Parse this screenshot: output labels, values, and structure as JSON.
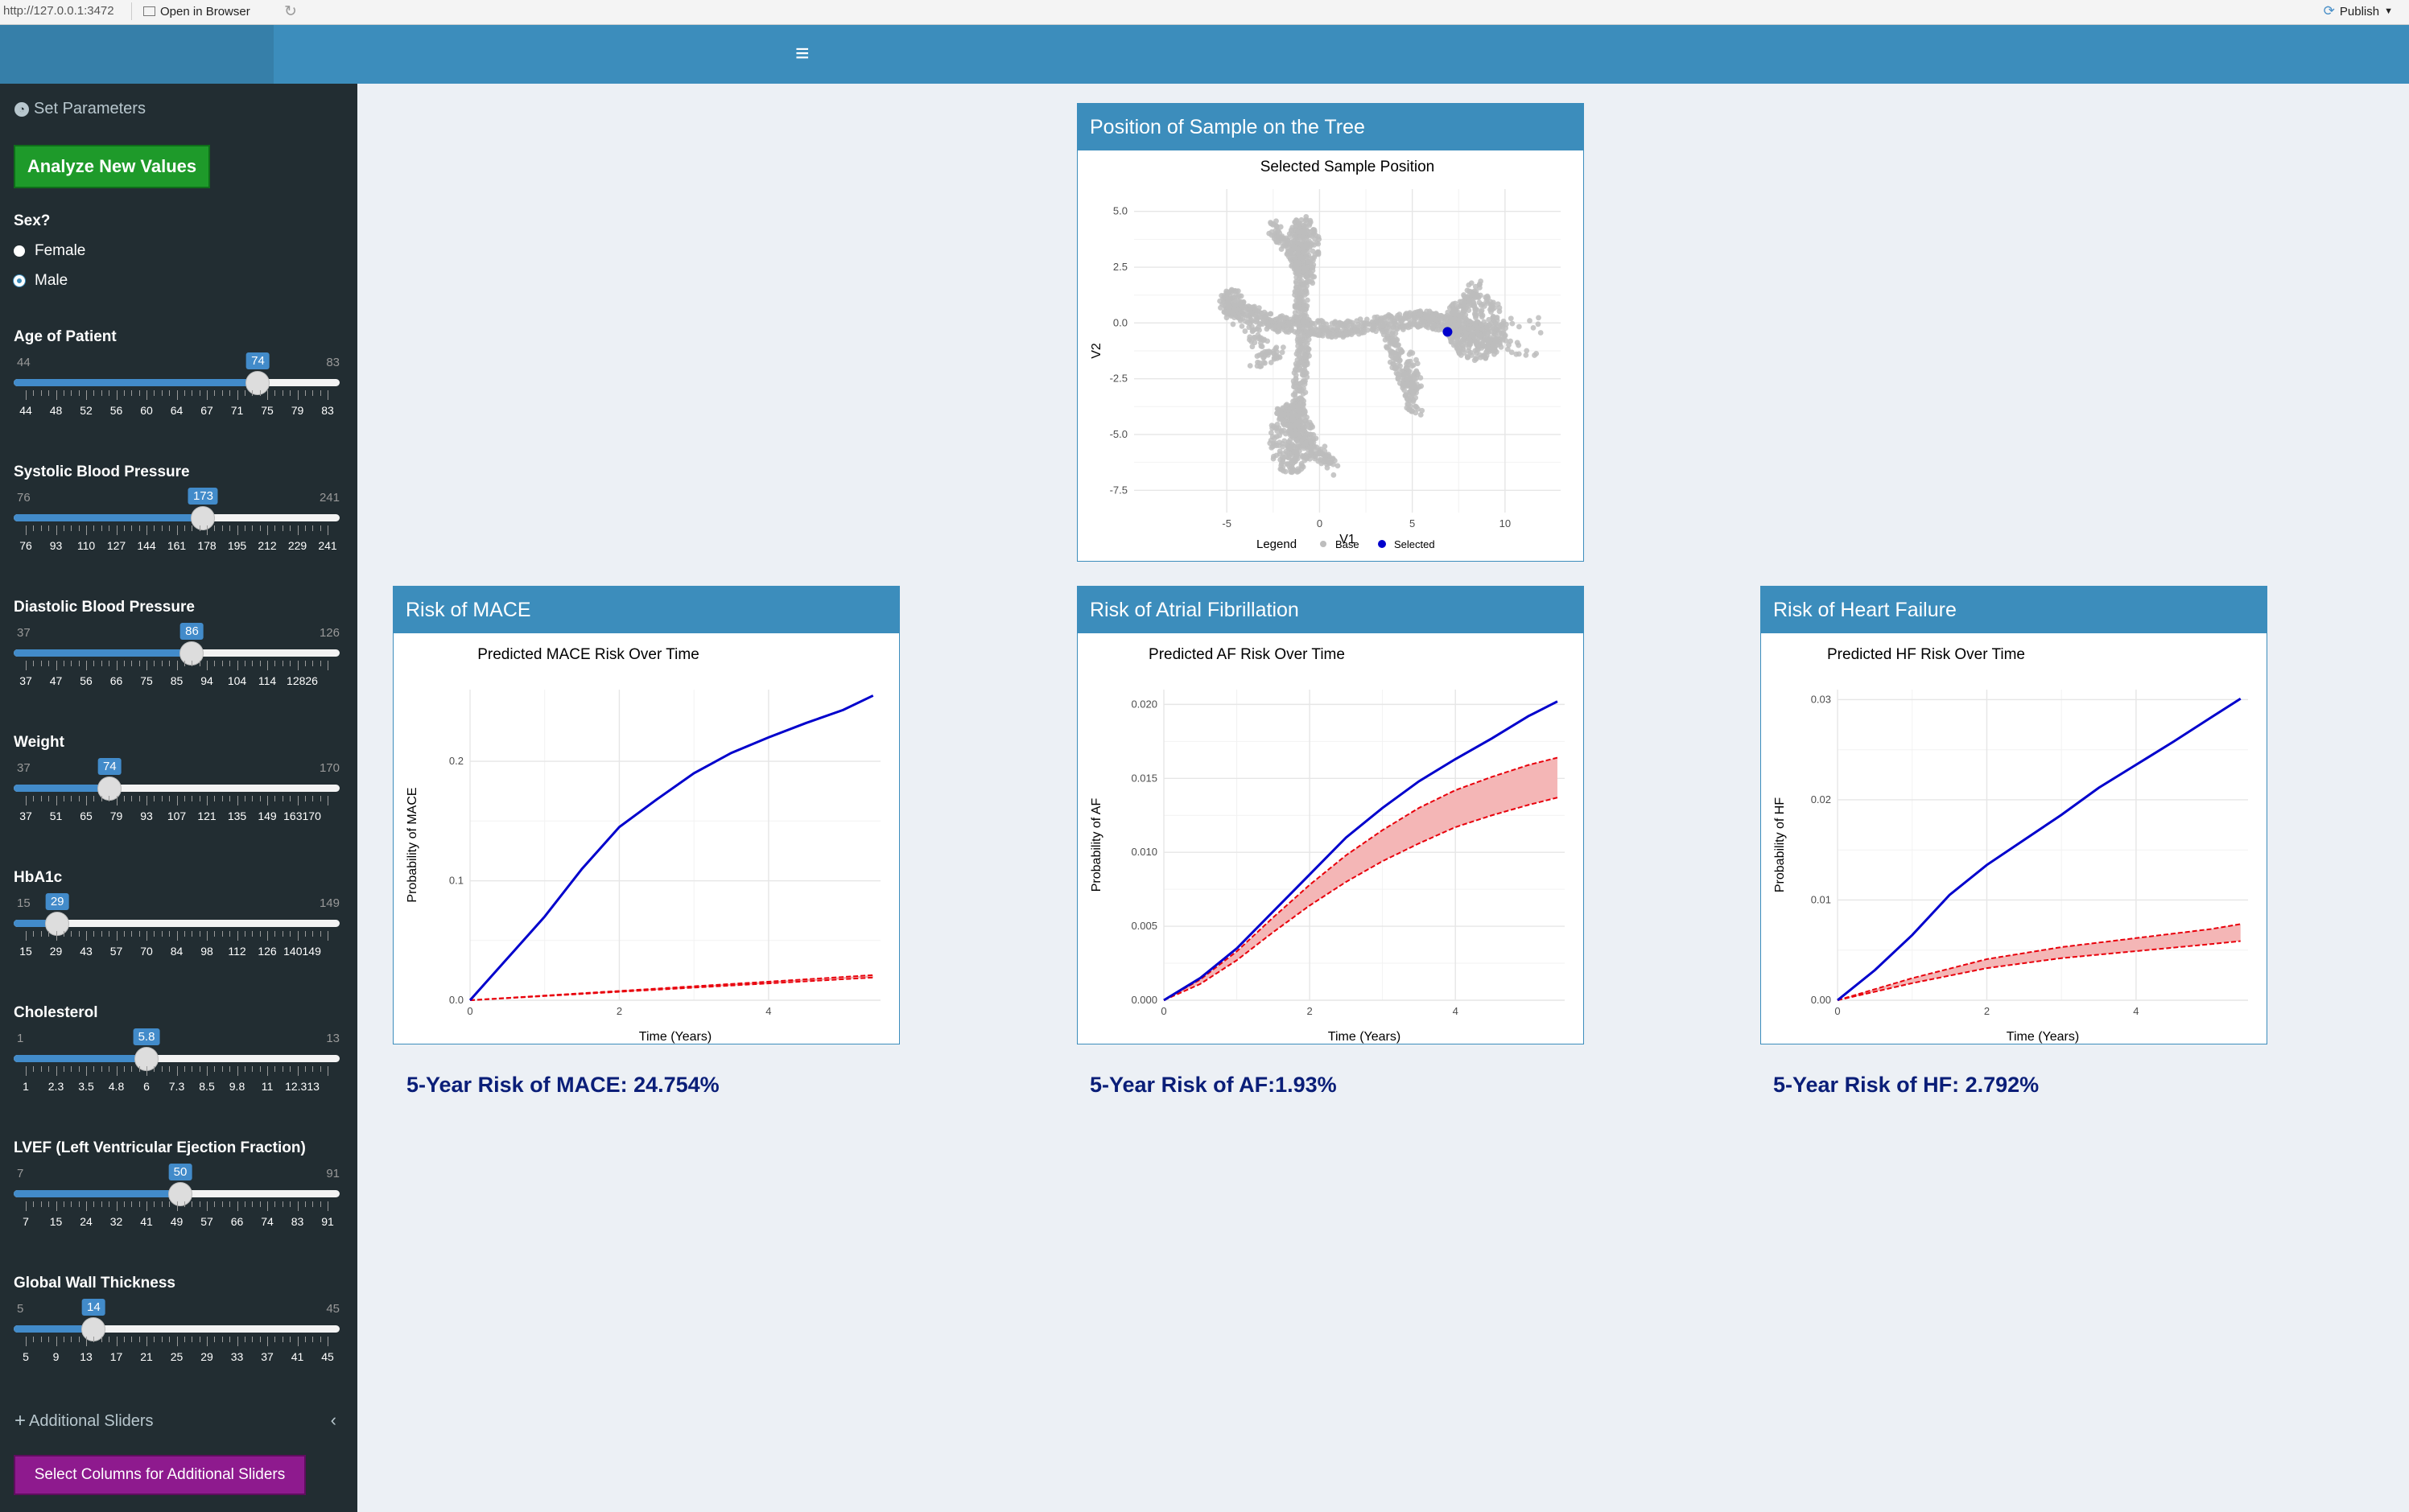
{
  "browser": {
    "url": "http://127.0.0.1:3472",
    "open_label": "Open in Browser",
    "publish_label": "Publish"
  },
  "sidebar": {
    "title": "Set Parameters",
    "analyze_button": "Analyze New Values",
    "sex_label": "Sex?",
    "sex_options": [
      "Female",
      "Male"
    ],
    "sex_selected": "Male",
    "sliders": [
      {
        "label": "Age of Patient",
        "min": "44",
        "max": "83",
        "value": "74",
        "ticks": [
          "44",
          "48",
          "52",
          "56",
          "60",
          "64",
          "67",
          "71",
          "75",
          "79",
          "83"
        ]
      },
      {
        "label": "Systolic Blood Pressure",
        "min": "76",
        "max": "241",
        "value": "173",
        "ticks": [
          "76",
          "93",
          "110",
          "127",
          "144",
          "161",
          "178",
          "195",
          "212",
          "229",
          "241"
        ]
      },
      {
        "label": "Diastolic Blood Pressure",
        "min": "37",
        "max": "126",
        "value": "86",
        "ticks": [
          "37",
          "47",
          "56",
          "66",
          "75",
          "85",
          "94",
          "104",
          "114",
          "12826"
        ]
      },
      {
        "label": "Weight",
        "min": "37",
        "max": "170",
        "value": "74",
        "ticks": [
          "37",
          "51",
          "65",
          "79",
          "93",
          "107",
          "121",
          "135",
          "149",
          "163170"
        ]
      },
      {
        "label": "HbA1c",
        "min": "15",
        "max": "149",
        "value": "29",
        "ticks": [
          "15",
          "29",
          "43",
          "57",
          "70",
          "84",
          "98",
          "112",
          "126",
          "140149"
        ]
      },
      {
        "label": "Cholesterol",
        "min": "1",
        "max": "13",
        "value": "5.8",
        "ticks": [
          "1",
          "2.3",
          "3.5",
          "4.8",
          "6",
          "7.3",
          "8.5",
          "9.8",
          "11",
          "12.313"
        ]
      },
      {
        "label": "LVEF (Left Ventricular Ejection Fraction)",
        "min": "7",
        "max": "91",
        "value": "50",
        "ticks": [
          "7",
          "15",
          "24",
          "32",
          "41",
          "49",
          "57",
          "66",
          "74",
          "83",
          "91"
        ]
      },
      {
        "label": "Global Wall Thickness",
        "min": "5",
        "max": "45",
        "value": "14",
        "ticks": [
          "5",
          "9",
          "13",
          "17",
          "21",
          "25",
          "29",
          "33",
          "37",
          "41",
          "45"
        ]
      }
    ],
    "additional_sliders": "Additional Sliders",
    "select_columns_button": "Select Columns for Additional Sliders"
  },
  "tree_box": {
    "title": "Position of Sample on the Tree"
  },
  "mace_box": {
    "title": "Risk of MACE",
    "result": "5-Year Risk of MACE: 24.754%"
  },
  "af_box": {
    "title": "Risk of Atrial Fibrillation",
    "result": "5-Year Risk of AF:1.93%"
  },
  "hf_box": {
    "title": "Risk of Heart Failure",
    "result": "5-Year Risk of HF: 2.792%"
  },
  "colors": {
    "header": "#3c8dbc",
    "sidebar": "#222d32",
    "selected": "#0000cc",
    "base": "#bdbdbd",
    "ribbon": "#f4b6b6",
    "ribbon_line": "#e8000b",
    "curve": "#0000cc"
  },
  "chart_data": [
    {
      "type": "scatter",
      "title": "Selected Sample Position",
      "xlabel": "V1",
      "ylabel": "V2",
      "xlim": [
        -10,
        13
      ],
      "ylim": [
        -8.5,
        6
      ],
      "xticks": [
        "-5",
        "0",
        "5",
        "10"
      ],
      "yticks": [
        "5.0",
        "2.5",
        "0.0",
        "-2.5",
        "-5.0",
        "-7.5"
      ],
      "legend_title": "Legend",
      "series": [
        {
          "name": "Base"
        },
        {
          "name": "Selected",
          "points": [
            [
              6.9,
              -0.4
            ]
          ]
        }
      ]
    },
    {
      "type": "line",
      "title": "Predicted MACE Risk Over Time",
      "xlabel": "Time (Years)",
      "ylabel": "Probability of MACE",
      "xlim": [
        0,
        5.5
      ],
      "ylim": [
        0,
        0.26
      ],
      "xticks": [
        "0",
        "2",
        "4"
      ],
      "yticks": [
        "0.0",
        "0.1",
        "0.2"
      ],
      "curve": {
        "x": [
          0,
          0.5,
          1,
          1.5,
          2,
          2.5,
          3,
          3.5,
          4,
          4.5,
          5,
          5.4
        ],
        "y": [
          0,
          0.035,
          0.07,
          0.11,
          0.145,
          0.168,
          0.19,
          0.207,
          0.22,
          0.232,
          0.243,
          0.255
        ]
      },
      "band": {
        "x": [
          0,
          5.4
        ],
        "lower": [
          0,
          0.019
        ],
        "upper": [
          0,
          0.021
        ]
      }
    },
    {
      "type": "line",
      "title": "Predicted AF Risk Over Time",
      "xlabel": "Time (Years)",
      "ylabel": "Probability of AF",
      "xlim": [
        0,
        5.5
      ],
      "ylim": [
        0,
        0.021
      ],
      "xticks": [
        "0",
        "2",
        "4"
      ],
      "yticks": [
        "0.000",
        "0.005",
        "0.010",
        "0.015",
        "0.020"
      ],
      "curve": {
        "x": [
          0,
          0.5,
          1,
          1.5,
          2,
          2.5,
          3,
          3.5,
          4,
          4.5,
          5,
          5.4
        ],
        "y": [
          0,
          0.0015,
          0.0035,
          0.006,
          0.0085,
          0.011,
          0.013,
          0.0148,
          0.0163,
          0.0177,
          0.0192,
          0.0202
        ]
      },
      "band": {
        "x": [
          0,
          0.5,
          1,
          1.5,
          2,
          2.5,
          3,
          3.5,
          4,
          4.5,
          5,
          5.4
        ],
        "lower": [
          0,
          0.0011,
          0.0027,
          0.0046,
          0.0064,
          0.008,
          0.0094,
          0.0106,
          0.0117,
          0.0125,
          0.0132,
          0.0137
        ],
        "upper": [
          0,
          0.0014,
          0.0033,
          0.0056,
          0.0078,
          0.0098,
          0.0115,
          0.013,
          0.0142,
          0.0151,
          0.0159,
          0.0164
        ]
      }
    },
    {
      "type": "line",
      "title": "Predicted HF Risk Over Time",
      "xlabel": "Time (Years)",
      "ylabel": "Probability of HF",
      "xlim": [
        0,
        5.5
      ],
      "ylim": [
        0,
        0.031
      ],
      "xticks": [
        "0",
        "2",
        "4"
      ],
      "yticks": [
        "0.00",
        "0.01",
        "0.02",
        "0.03"
      ],
      "curve": {
        "x": [
          0,
          0.5,
          1,
          1.5,
          2,
          2.5,
          3,
          3.5,
          4,
          4.5,
          5,
          5.4
        ],
        "y": [
          0,
          0.003,
          0.0065,
          0.0105,
          0.0135,
          0.016,
          0.0185,
          0.0212,
          0.0235,
          0.0258,
          0.0282,
          0.0301
        ]
      },
      "band": {
        "x": [
          0,
          1,
          2,
          3,
          4,
          5,
          5.4
        ],
        "lower": [
          0,
          0.0017,
          0.0032,
          0.0042,
          0.0049,
          0.0056,
          0.0059
        ],
        "upper": [
          0,
          0.0022,
          0.0041,
          0.0053,
          0.0062,
          0.0071,
          0.0076
        ]
      }
    }
  ]
}
